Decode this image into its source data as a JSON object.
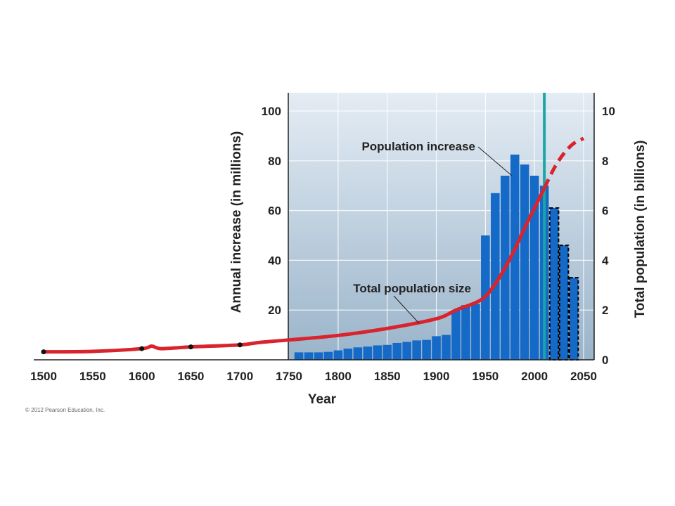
{
  "chart_data": {
    "type": "bar",
    "xlabel": "Year",
    "ylabel_left": "Annual increase (in millions)",
    "ylabel_right": "Total population (in billions)",
    "x_ticks": [
      "1500",
      "1550",
      "1600",
      "1650",
      "1700",
      "1750",
      "1800",
      "1850",
      "1900",
      "1950",
      "2000",
      "2050"
    ],
    "y_left_ticks": [
      "20",
      "40",
      "60",
      "80",
      "100"
    ],
    "y_right_ticks": [
      "0",
      "2",
      "4",
      "6",
      "8",
      "10"
    ],
    "xlim": [
      1500,
      2050
    ],
    "ylim_left": [
      0,
      100
    ],
    "ylim_right": [
      0,
      10
    ],
    "grid": true,
    "marker_year": 2010,
    "annotations": {
      "population_increase": "Population increase",
      "total_population_size": "Total population size"
    },
    "bar_series": {
      "name": "Population increase",
      "color": "#1569c7",
      "bar_width_years": 9,
      "x": [
        1760,
        1770,
        1780,
        1790,
        1800,
        1810,
        1820,
        1830,
        1840,
        1850,
        1860,
        1870,
        1880,
        1890,
        1900,
        1910,
        1920,
        1930,
        1940,
        1950,
        1960,
        1970,
        1980,
        1990,
        2000,
        2010,
        2020,
        2030,
        2040,
        2050
      ],
      "values": [
        3,
        3,
        3,
        3.2,
        3.8,
        4.5,
        5,
        5.3,
        5.8,
        6,
        6.8,
        7.2,
        7.8,
        8,
        9.5,
        10,
        20,
        22,
        22.5,
        50,
        67,
        74,
        82.5,
        78.5,
        74,
        70,
        61,
        46,
        33,
        0
      ],
      "projected_from": 2020
    },
    "line_series": {
      "name": "Total population size",
      "color": "#d9232d",
      "x": [
        1500,
        1550,
        1600,
        1610,
        1620,
        1650,
        1700,
        1720,
        1750,
        1800,
        1850,
        1900,
        1920,
        1940,
        1950,
        1960,
        1970,
        1980,
        1990,
        2000,
        2010
      ],
      "values": [
        0.32,
        0.34,
        0.45,
        0.55,
        0.45,
        0.52,
        0.6,
        0.7,
        0.8,
        0.98,
        1.26,
        1.65,
        2.0,
        2.3,
        2.55,
        3.05,
        3.7,
        4.45,
        5.3,
        6.1,
        6.9
      ],
      "projected": {
        "x": [
          2010,
          2020,
          2030,
          2040,
          2050
        ],
        "values": [
          6.9,
          7.7,
          8.3,
          8.7,
          8.9
        ]
      },
      "marked_points": [
        1500,
        1600,
        1650,
        1700
      ]
    },
    "colors": {
      "plot_bg_top": "#e4ecf4",
      "plot_bg_bottom": "#9ab4ca",
      "marker_line": "#1aa6a6"
    }
  },
  "copyright": "© 2012 Pearson Education, Inc."
}
